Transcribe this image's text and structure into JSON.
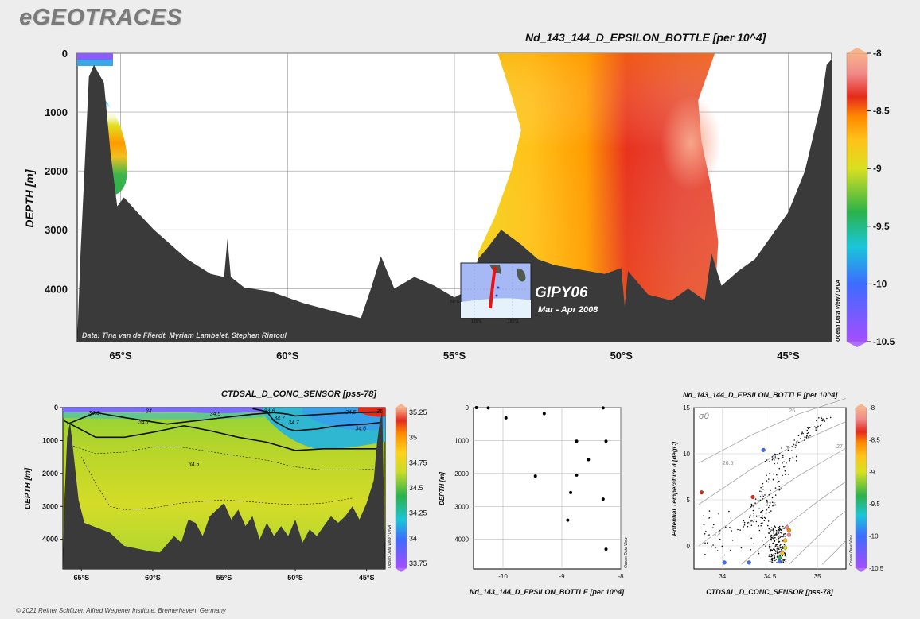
{
  "brand": "eGEOTRACES",
  "copyright": "© 2021 Reiner Schlitzer, Alfred Wegener Institute, Bremerhaven, Germany",
  "colors": {
    "land": "#3a3a3a",
    "background": "#ededed",
    "colorbar": [
      "#a64dff",
      "#3d6cff",
      "#19c6d9",
      "#2bb24a",
      "#d9e020",
      "#ffc21a",
      "#ff8a00",
      "#e52a1c",
      "#f08a8a",
      "#f7b38a"
    ]
  },
  "inset": {
    "label": "GIPY06",
    "dates": "Mar - Apr 2008",
    "tick_labels": [
      "120°E",
      "150°E",
      "60°S"
    ]
  },
  "chart_data": [
    {
      "id": "main-section",
      "type": "heatmap",
      "title": "Nd_143_144_D_EPSILON_BOTTLE [per 10^4]",
      "xlabel": "",
      "ylabel": "DEPTH [m]",
      "x_tick_labels": [
        "65°S",
        "60°S",
        "55°S",
        "50°S",
        "45°S"
      ],
      "x_ticks": [
        -65,
        -60,
        -55,
        -50,
        -45
      ],
      "xlim": [
        -66.3,
        -43.7
      ],
      "y_ticks": [
        0,
        1000,
        2000,
        3000,
        4000
      ],
      "ylim": [
        0,
        4900
      ],
      "colorbar": {
        "min": -10.5,
        "max": -8,
        "ticks": [
          -8,
          -8.5,
          -9,
          -9.5,
          -10,
          -10.5
        ],
        "tick_labels": [
          "-8",
          "-8.5",
          "-9",
          "-9.5",
          "-10",
          "-10.5"
        ],
        "label": "Ocean Data View / DIVA"
      },
      "annotation": "Data: Tina van de Flierdt, Myriam Lambelet, Stephen Rintoul",
      "field_notes": "Patch near 65°S values -9 to -10.5 at surface, about -8.7 at 1500 m; broad band 53.7°S–47.2°S with values -8.2 to -9.0, most radiogenic (-8.1) near 48°S, 1500 m",
      "bathymetry_depth_m": [
        [
          -66.3,
          4900
        ],
        [
          -66.2,
          3400
        ],
        [
          -65.95,
          400
        ],
        [
          -65.8,
          200
        ],
        [
          -65.5,
          500
        ],
        [
          -65.3,
          1700
        ],
        [
          -65.1,
          2600
        ],
        [
          -64.9,
          2450
        ],
        [
          -64.5,
          2700
        ],
        [
          -64,
          3000
        ],
        [
          -63,
          3500
        ],
        [
          -62.3,
          3750
        ],
        [
          -61.9,
          3800
        ],
        [
          -61.8,
          3150
        ],
        [
          -61.7,
          3800
        ],
        [
          -61.3,
          3980
        ],
        [
          -60.5,
          4050
        ],
        [
          -59.5,
          4250
        ],
        [
          -58.5,
          4400
        ],
        [
          -57.8,
          4500
        ],
        [
          -57.5,
          4000
        ],
        [
          -57.2,
          3450
        ],
        [
          -56.8,
          4000
        ],
        [
          -56.2,
          3800
        ],
        [
          -55.6,
          3950
        ],
        [
          -55,
          4150
        ],
        [
          -54.5,
          4000
        ],
        [
          -54.3,
          3500
        ],
        [
          -54,
          3300
        ],
        [
          -53.6,
          3000
        ],
        [
          -53,
          3250
        ],
        [
          -52.5,
          3500
        ],
        [
          -52,
          3600
        ],
        [
          -51.5,
          3650
        ],
        [
          -50.5,
          3750
        ],
        [
          -50,
          3650
        ],
        [
          -49.9,
          4300
        ],
        [
          -49.8,
          3700
        ],
        [
          -49.2,
          4100
        ],
        [
          -48.5,
          4200
        ],
        [
          -48,
          4000
        ],
        [
          -47.5,
          4200
        ],
        [
          -47.3,
          3400
        ],
        [
          -47,
          3950
        ],
        [
          -46.5,
          3700
        ],
        [
          -46,
          3500
        ],
        [
          -45.5,
          3100
        ],
        [
          -45,
          2700
        ],
        [
          -44.5,
          2000
        ],
        [
          -44,
          800
        ],
        [
          -43.85,
          200
        ],
        [
          -43.7,
          100
        ]
      ]
    },
    {
      "id": "salinity-section",
      "type": "heatmap",
      "title": "CTDSAL_D_CONC_SENSOR [pss-78]",
      "xlabel": "",
      "ylabel": "DEPTH [m]",
      "x_tick_labels": [
        "65°S",
        "60°S",
        "55°S",
        "50°S",
        "45°S"
      ],
      "x_ticks": [
        -65,
        -60,
        -55,
        -50,
        -45
      ],
      "xlim": [
        -66.3,
        -43.7
      ],
      "y_ticks": [
        0,
        1000,
        2000,
        3000,
        4000
      ],
      "ylim": [
        0,
        4900
      ],
      "colorbar": {
        "min": 33.75,
        "max": 35.25,
        "ticks": [
          35.25,
          35,
          34.75,
          34.5,
          34.25,
          34,
          33.75
        ],
        "tick_labels": [
          "35.25",
          "35",
          "34.75",
          "34.5",
          "34.25",
          "34",
          "33.75"
        ],
        "label": "Ocean Data View / DIVA"
      },
      "contour_labels": [
        "34.6",
        "34",
        "34.7",
        "34.5",
        "34.6",
        "34.7",
        "34.5",
        "34.7",
        "34.6",
        "35",
        "34.5"
      ],
      "contours": [
        {
          "level": 34.7,
          "style": "solid",
          "points": [
            [
              -66,
              500
            ],
            [
              -64,
              150
            ],
            [
              -62,
              300
            ],
            [
              -59,
              500
            ],
            [
              -57,
              400
            ],
            [
              -55,
              300
            ],
            [
              -53,
              200
            ],
            [
              -51.5,
              150
            ],
            [
              -50.5,
              200
            ],
            [
              -50,
              250
            ],
            [
              -48,
              200
            ],
            [
              -46,
              150
            ],
            [
              -44,
              130
            ]
          ]
        },
        {
          "level": 34.5,
          "style": "solid",
          "points": [
            [
              -53,
              30
            ],
            [
              -52,
              120
            ],
            [
              -51.5,
              400
            ],
            [
              -50.5,
              650
            ],
            [
              -50,
              700
            ],
            [
              -48.5,
              650
            ],
            [
              -47,
              550
            ],
            [
              -45,
              500
            ],
            [
              -44,
              450
            ]
          ]
        },
        {
          "level": 34.6,
          "style": "solid",
          "points": [
            [
              -66.2,
              400
            ],
            [
              -64,
              900
            ],
            [
              -62,
              900
            ],
            [
              -60,
              750
            ],
            [
              -57.8,
              550
            ],
            [
              -56,
              700
            ],
            [
              -54,
              900
            ],
            [
              -52,
              1050
            ],
            [
              -50,
              1300
            ],
            [
              -48,
              1250
            ],
            [
              -46,
              1250
            ],
            [
              -44,
              1250
            ]
          ]
        },
        {
          "level": 34.7,
          "style": "dotted",
          "points": [
            [
              -66,
              1100
            ],
            [
              -64,
              1400
            ],
            [
              -62,
              1350
            ],
            [
              -60,
              1200
            ],
            [
              -58,
              1200
            ],
            [
              -55,
              1400
            ],
            [
              -52,
              1600
            ],
            [
              -50,
              1800
            ],
            [
              -48,
              1900
            ],
            [
              -46,
              1900
            ],
            [
              -44,
              1850
            ]
          ]
        },
        {
          "level": 34.7,
          "style": "dotted",
          "points": [
            [
              -65,
              1500
            ],
            [
              -64,
              2300
            ],
            [
              -63,
              3000
            ],
            [
              -62,
              3100
            ],
            [
              -60,
              3050
            ],
            [
              -58,
              2900
            ],
            [
              -55,
              2800
            ],
            [
              -52,
              2900
            ],
            [
              -50,
              2950
            ],
            [
              -48,
              2900
            ],
            [
              -46,
              2750
            ]
          ]
        }
      ],
      "bathymetry_depth_m": [
        [
          -66.3,
          4900
        ],
        [
          -66.2,
          2900
        ],
        [
          -66,
          900
        ],
        [
          -65.8,
          450
        ],
        [
          -65.6,
          1200
        ],
        [
          -65.2,
          2800
        ],
        [
          -64.8,
          3500
        ],
        [
          -63,
          3800
        ],
        [
          -62,
          4200
        ],
        [
          -60,
          4380
        ],
        [
          -59.5,
          4400
        ],
        [
          -58.5,
          3900
        ],
        [
          -58,
          4100
        ],
        [
          -57.5,
          3400
        ],
        [
          -57,
          3500
        ],
        [
          -56.5,
          3900
        ],
        [
          -56,
          3300
        ],
        [
          -55.5,
          3100
        ],
        [
          -55,
          2900
        ],
        [
          -54.5,
          3400
        ],
        [
          -54,
          3100
        ],
        [
          -53.5,
          3600
        ],
        [
          -53,
          3300
        ],
        [
          -52.5,
          4000
        ],
        [
          -52,
          3500
        ],
        [
          -51.5,
          3900
        ],
        [
          -51,
          3600
        ],
        [
          -50.5,
          3900
        ],
        [
          -50,
          3400
        ],
        [
          -49.5,
          4100
        ],
        [
          -49,
          3700
        ],
        [
          -48.5,
          3900
        ],
        [
          -48,
          3600
        ],
        [
          -47.5,
          3300
        ],
        [
          -47,
          3500
        ],
        [
          -46.5,
          3300
        ],
        [
          -46,
          3000
        ],
        [
          -45.5,
          3400
        ],
        [
          -45,
          2900
        ],
        [
          -44.5,
          2200
        ],
        [
          -44.3,
          1200
        ],
        [
          -44.1,
          500
        ],
        [
          -43.9,
          100
        ]
      ]
    },
    {
      "id": "profile-scatter",
      "type": "scatter",
      "title": "",
      "xlabel": "Nd_143_144_D_EPSILON_BOTTLE [per 10^4]",
      "ylabel": "DEPTH [m]",
      "x_tick_labels": [
        "-10",
        "-9",
        "-8"
      ],
      "x_ticks": [
        -10,
        -9,
        -8
      ],
      "xlim": [
        -10.5,
        -8
      ],
      "y_ticks": [
        0,
        1000,
        2000,
        3000,
        4000
      ],
      "ylim": [
        0,
        4900
      ],
      "side_label": "Ocean Data View",
      "x": [
        -10.45,
        -10.25,
        -8.3,
        -9.3,
        -9.95,
        -8.25,
        -8.75,
        -8.55,
        -9.45,
        -8.75,
        -8.85,
        -8.3,
        -8.9,
        -8.25
      ],
      "y": [
        0,
        10,
        10,
        180,
        310,
        1020,
        1020,
        1580,
        2080,
        2050,
        2580,
        2780,
        3420,
        4300
      ]
    },
    {
      "id": "ts-diagram",
      "type": "scatter",
      "title": "Nd_143_144_D_EPSILON_BOTTLE [per 10^4]",
      "xlabel": "CTDSAL_D_CONC_SENSOR [pss-78]",
      "ylabel": "Potential Temperature θ [degC]",
      "sigma_label": "σ0",
      "x_tick_labels": [
        "34",
        "34.5",
        "35"
      ],
      "x_ticks": [
        34,
        34.5,
        35
      ],
      "xlim": [
        33.7,
        35.3
      ],
      "y_tick_labels": [
        "15",
        "10",
        "5",
        "0"
      ],
      "y_ticks": [
        15,
        10,
        5,
        0
      ],
      "ylim": [
        -2.5,
        15
      ],
      "isopycnal_labels": [
        "26",
        "26.5",
        "27",
        "27.5"
      ],
      "colorbar": {
        "min": -10.5,
        "max": -8,
        "ticks": [
          -8,
          -8.5,
          -9,
          -9.5,
          -10,
          -10.5
        ],
        "tick_labels": [
          "-8",
          "-8.5",
          "-9",
          "-9.5",
          "-10",
          "-10.5"
        ],
        "label": "Ocean Data View"
      },
      "colored_points": [
        {
          "s": 34.43,
          "t": 10.4,
          "v": -10.2
        },
        {
          "s": 33.78,
          "t": 5.8,
          "v": -8.5
        },
        {
          "s": 34.32,
          "t": 5.3,
          "v": -8.6
        },
        {
          "s": 34.02,
          "t": -1.8,
          "v": -10.1
        },
        {
          "s": 34.66,
          "t": 0.6,
          "v": -9.0
        },
        {
          "s": 34.7,
          "t": 1.2,
          "v": -8.2
        },
        {
          "s": 34.7,
          "t": 1.7,
          "v": -8.9
        },
        {
          "s": 34.68,
          "t": 2.0,
          "v": -8.3
        },
        {
          "s": 34.66,
          "t": -0.2,
          "v": -9.4
        },
        {
          "s": 34.63,
          "t": -0.8,
          "v": -9.2
        },
        {
          "s": 34.6,
          "t": -1.3,
          "v": -9.6
        },
        {
          "s": 34.6,
          "t": -1.7,
          "v": -10.2
        },
        {
          "s": 34.28,
          "t": -1.8,
          "v": -10.3
        }
      ]
    }
  ]
}
